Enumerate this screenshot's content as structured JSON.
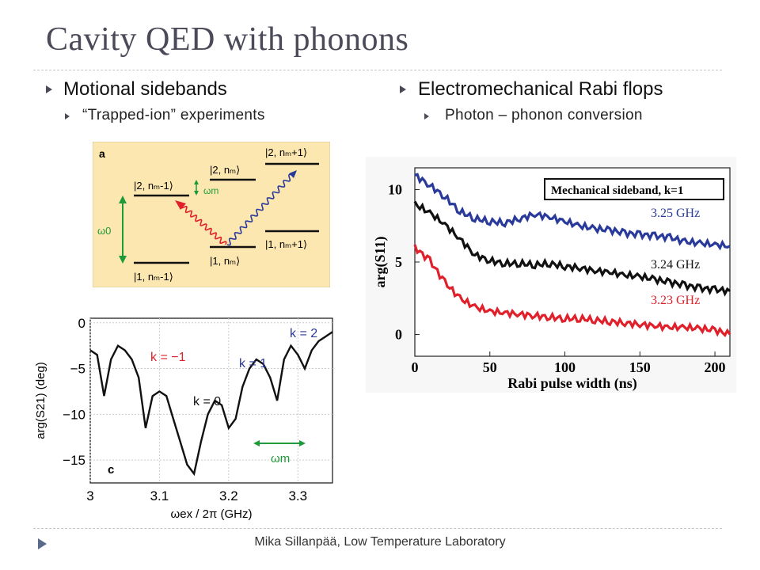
{
  "slide": {
    "title": "Cavity QED with phonons",
    "footer": "Mika Sillanpää, Low Temperature Laboratory"
  },
  "left": {
    "bullet": "Motional sidebands",
    "sub": "“Trapped-ion” experiments"
  },
  "right": {
    "bullet": "Electromechanical Rabi flops",
    "sub": "Photon – phonon conversion"
  },
  "colors": {
    "title": "#4a4a58",
    "panel_a_bg": "#fde7b0",
    "red": "#e0202a",
    "blue": "#2a3a9a",
    "green": "#1f9a3a",
    "black": "#111111"
  },
  "panel_a": {
    "label": "a",
    "levels": {
      "l2_minus": "|2, nₘ-1⟩",
      "l2": "|2, nₘ⟩",
      "l2_plus": "|2, nₘ+1⟩",
      "l1_minus": "|1, nₘ-1⟩",
      "l1": "|1, nₘ⟩",
      "l1_plus": "|1, nₘ+1⟩"
    },
    "omega_m": "ωm",
    "omega_0": "ω0"
  },
  "chart_data": [
    {
      "type": "line",
      "panel_label": "c",
      "xlabel": "ωex / 2π (GHz)",
      "ylabel": "arg(S21) (deg)",
      "xlim": [
        3.0,
        3.35
      ],
      "ylim": [
        -17.5,
        0.5
      ],
      "xticks": [
        "3",
        "3.1",
        "3.2",
        "3.3"
      ],
      "yticks": [
        "0",
        "−5",
        "−10",
        "−15"
      ],
      "annotations": [
        "k = −1",
        "k = 0",
        "k = 1",
        "k = 2",
        "ωm"
      ],
      "series": [
        {
          "x": [
            3.0,
            3.01,
            3.02,
            3.03,
            3.04,
            3.05,
            3.06,
            3.07,
            3.08,
            3.09,
            3.1,
            3.11,
            3.12,
            3.13,
            3.14,
            3.15,
            3.16,
            3.17,
            3.18,
            3.19,
            3.2,
            3.21,
            3.22,
            3.23,
            3.24,
            3.25,
            3.26,
            3.27,
            3.28,
            3.29,
            3.3,
            3.31,
            3.32,
            3.33,
            3.34,
            3.35
          ],
          "y": [
            -3,
            -3.5,
            -8,
            -4,
            -2.5,
            -3,
            -4,
            -6,
            -11.5,
            -8,
            -7.5,
            -8,
            -10.5,
            -13,
            -15.5,
            -16.5,
            -13,
            -10,
            -8.5,
            -9,
            -11.5,
            -10.5,
            -7,
            -5,
            -4,
            -4.5,
            -6,
            -8.5,
            -4,
            -2.5,
            -3.5,
            -5,
            -3,
            -2,
            -1.5,
            -1
          ]
        }
      ]
    },
    {
      "type": "line",
      "legend_title": "Mechanical sideband, k=1",
      "xlabel": "Rabi pulse width (ns)",
      "ylabel": "arg(S11)",
      "xlim": [
        0,
        210
      ],
      "ylim": [
        -1.5,
        11.5
      ],
      "xticks": [
        "0",
        "50",
        "100",
        "150",
        "200"
      ],
      "yticks": [
        "0",
        "5",
        "10"
      ],
      "series": [
        {
          "name": "3.25 GHz",
          "x": [
            0,
            10,
            20,
            30,
            40,
            50,
            60,
            70,
            80,
            90,
            100,
            110,
            120,
            130,
            140,
            150,
            160,
            170,
            180,
            190,
            200,
            210
          ],
          "y": [
            11,
            10.3,
            9.5,
            8.5,
            8,
            7.8,
            7.7,
            8,
            8.3,
            8.1,
            7.8,
            7.5,
            7.3,
            7.2,
            7,
            6.9,
            6.8,
            6.7,
            6.4,
            6.3,
            6.2,
            6.1
          ]
        },
        {
          "name": "3.24 GHz",
          "x": [
            0,
            10,
            20,
            30,
            40,
            50,
            60,
            70,
            80,
            90,
            100,
            110,
            120,
            130,
            140,
            150,
            160,
            170,
            180,
            190,
            200,
            210
          ],
          "y": [
            9,
            8.4,
            7.6,
            6.6,
            5.5,
            5.1,
            4.9,
            4.9,
            4.8,
            4.9,
            4.7,
            4.6,
            4.4,
            4.3,
            4.1,
            4,
            3.8,
            3.6,
            3.4,
            3.2,
            3.1,
            3
          ]
        },
        {
          "name": "3.23 GHz",
          "x": [
            0,
            10,
            20,
            30,
            40,
            50,
            60,
            70,
            80,
            90,
            100,
            110,
            120,
            130,
            140,
            150,
            160,
            170,
            180,
            190,
            200,
            210
          ],
          "y": [
            6,
            5.1,
            3.6,
            2.5,
            1.9,
            1.6,
            1.5,
            1.4,
            1.3,
            1.2,
            1.1,
            1.1,
            1,
            0.9,
            0.8,
            0.7,
            0.6,
            0.5,
            0.5,
            0.4,
            0.3,
            0
          ]
        }
      ]
    }
  ]
}
